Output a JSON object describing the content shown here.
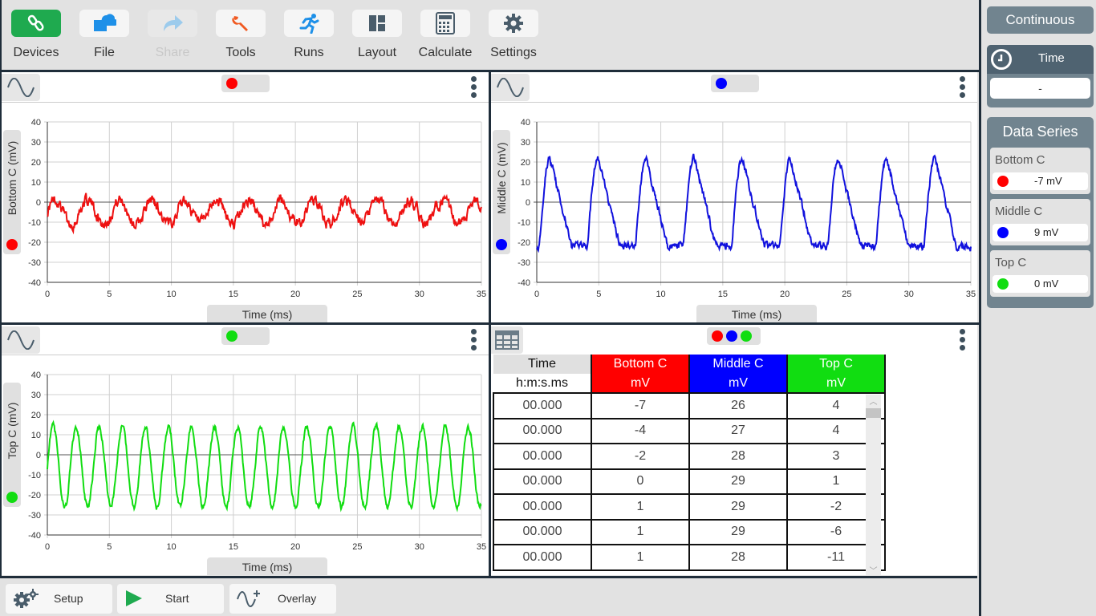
{
  "toolbar": {
    "buttons": [
      {
        "label": "Devices",
        "icon": "link-icon"
      },
      {
        "label": "File",
        "icon": "file-icon"
      },
      {
        "label": "Share",
        "icon": "share-icon",
        "disabled": true
      },
      {
        "label": "Tools",
        "icon": "wrench-icon"
      },
      {
        "label": "Runs",
        "icon": "runner-icon"
      },
      {
        "label": "Layout",
        "icon": "layout-icon"
      },
      {
        "label": "Calculate",
        "icon": "calculator-icon"
      },
      {
        "label": "Settings",
        "icon": "gear-icon"
      }
    ]
  },
  "colors": {
    "bottom": "#ff0000",
    "middle": "#0000ff",
    "top": "#00dd00",
    "accent": "#1faa4f"
  },
  "graphs": [
    {
      "id": "bottom",
      "ylabel": "Bottom C (mV)",
      "xlabel": "Time (ms)",
      "color": "#ee1111",
      "xlim": [
        0,
        35
      ],
      "ylim": [
        -40,
        40
      ],
      "xticks": [
        "0",
        "5",
        "10",
        "15",
        "20",
        "25",
        "30",
        "35"
      ],
      "yticks": [
        "40",
        "30",
        "20",
        "10",
        "0",
        "-10",
        "-20",
        "-30",
        "-40"
      ],
      "wave": {
        "period_ms": 2.6,
        "amplitude": 6,
        "offset": -5,
        "noise": 2.2,
        "shape": "sine"
      }
    },
    {
      "id": "middle",
      "ylabel": "Middle C (mV)",
      "xlabel": "Time (ms)",
      "color": "#1111dd",
      "xlim": [
        0,
        35
      ],
      "ylim": [
        -40,
        40
      ],
      "xticks": [
        "0",
        "5",
        "10",
        "15",
        "20",
        "25",
        "30",
        "35"
      ],
      "yticks": [
        "40",
        "30",
        "20",
        "10",
        "0",
        "-10",
        "-20",
        "-30",
        "-40"
      ],
      "wave": {
        "period_ms": 3.88,
        "amplitude": 22,
        "offset": 0,
        "noise": 1.5,
        "shape": "pulse"
      }
    },
    {
      "id": "top",
      "ylabel": "Top C (mV)",
      "xlabel": "Time (ms)",
      "color": "#11dd11",
      "xlim": [
        0,
        35
      ],
      "ylim": [
        -40,
        40
      ],
      "xticks": [
        "0",
        "5",
        "10",
        "15",
        "20",
        "25",
        "30",
        "35"
      ],
      "yticks": [
        "40",
        "30",
        "20",
        "10",
        "0",
        "-10",
        "-20",
        "-30",
        "-40"
      ],
      "wave": {
        "period_ms": 1.86,
        "amplitude": 20,
        "offset": -6,
        "noise": 1.2,
        "shape": "sine"
      }
    }
  ],
  "table": {
    "headers": [
      {
        "name": "Time",
        "unit": "h:m:s.ms"
      },
      {
        "name": "Bottom C",
        "unit": "mV"
      },
      {
        "name": "Middle C",
        "unit": "mV"
      },
      {
        "name": "Top C",
        "unit": "mV"
      }
    ],
    "rows": [
      [
        "00.000",
        "-7",
        "26",
        "4"
      ],
      [
        "00.000",
        "-4",
        "27",
        "4"
      ],
      [
        "00.000",
        "-2",
        "28",
        "3"
      ],
      [
        "00.000",
        "0",
        "29",
        "1"
      ],
      [
        "00.000",
        "1",
        "29",
        "-2"
      ],
      [
        "00.000",
        "1",
        "29",
        "-6"
      ],
      [
        "00.000",
        "1",
        "28",
        "-11"
      ]
    ]
  },
  "right": {
    "mode": "Continuous",
    "time_label": "Time",
    "time_value": "-",
    "data_series_title": "Data Series",
    "series": [
      {
        "name": "Bottom C",
        "value": "-7 mV",
        "color": "#ff0000"
      },
      {
        "name": "Middle C",
        "value": "9 mV",
        "color": "#0000ff"
      },
      {
        "name": "Top C",
        "value": "0 mV",
        "color": "#11dd11"
      }
    ]
  },
  "bottombar": {
    "setup": "Setup",
    "start": "Start",
    "overlay": "Overlay"
  }
}
